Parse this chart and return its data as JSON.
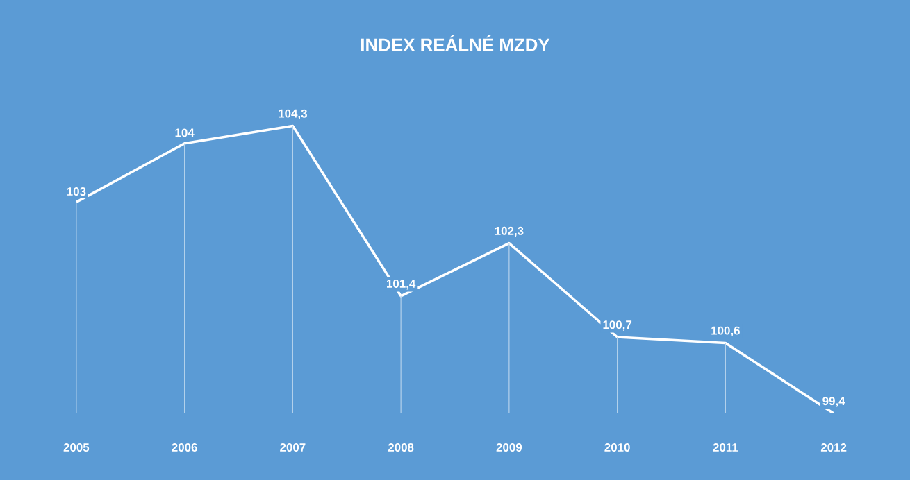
{
  "chart_data": {
    "type": "line",
    "title": "INDEX REÁLNÉ MZDY",
    "categories": [
      "2005",
      "2006",
      "2007",
      "2008",
      "2009",
      "2010",
      "2011",
      "2012"
    ],
    "series": [
      {
        "color": "#ffffff",
        "values": [
          103,
          104,
          104.3,
          101.4,
          102.3,
          100.7,
          100.6,
          99.4
        ],
        "value_labels": [
          "103",
          "104",
          "104,3",
          "101,4",
          "102,3",
          "100,7",
          "100,6",
          "99,4"
        ]
      }
    ],
    "grid": "x",
    "marker": "none"
  }
}
